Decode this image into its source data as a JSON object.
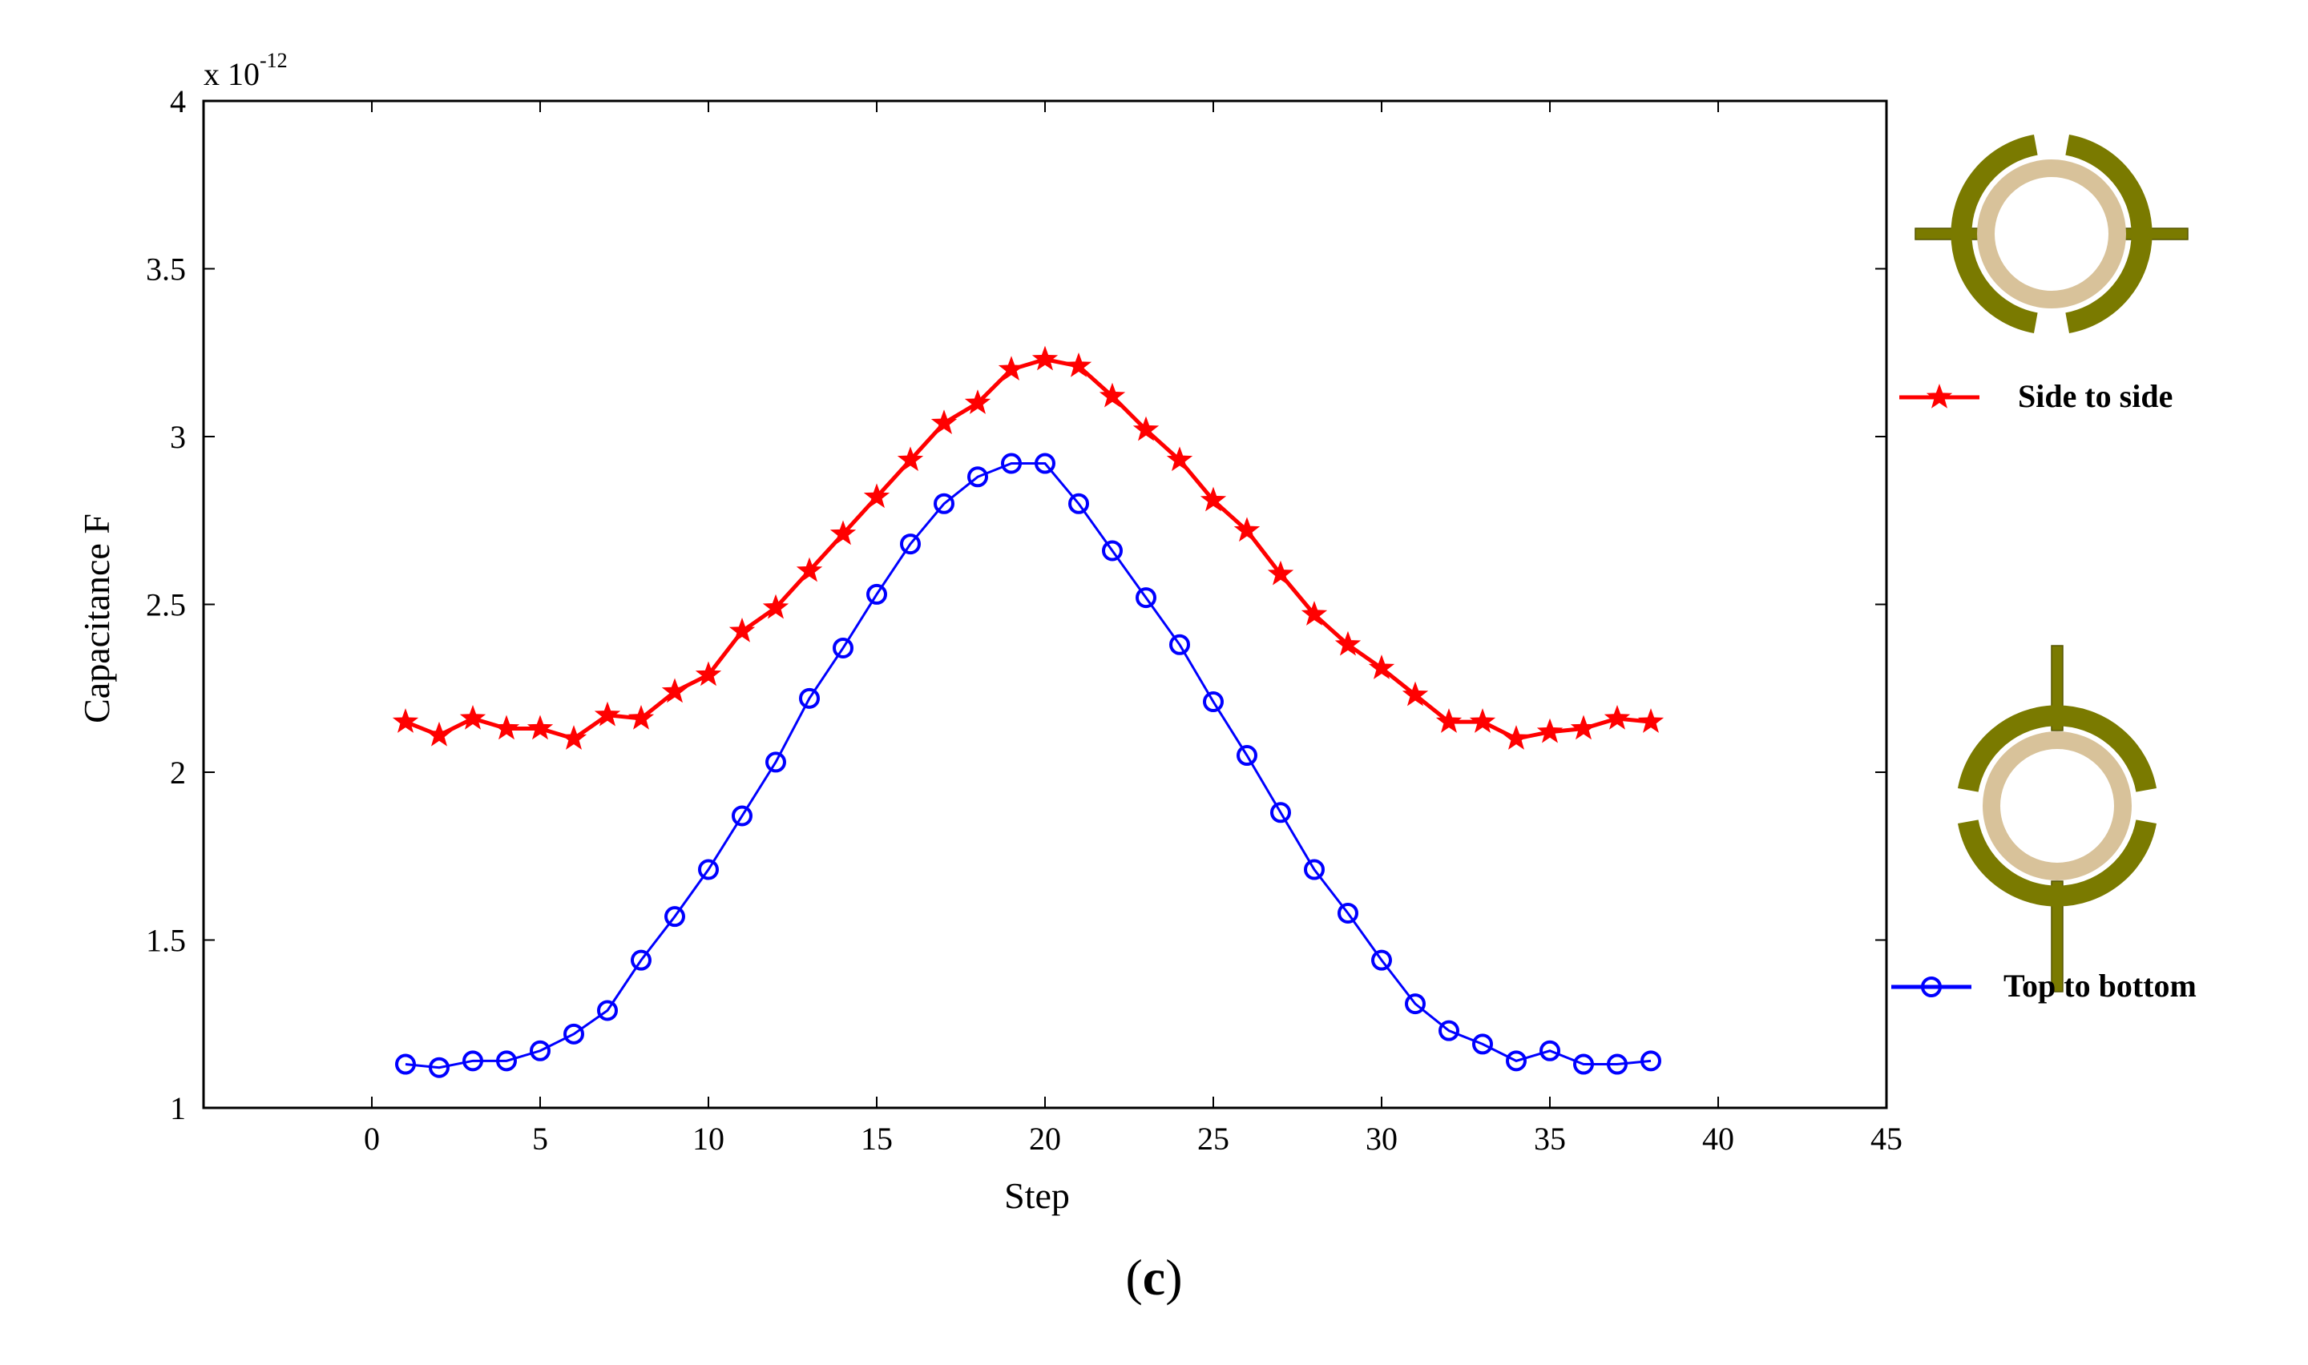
{
  "chart_data": {
    "type": "line",
    "title": "",
    "xlabel": "Step",
    "ylabel": "Capacitance F",
    "y_multiplier": "x 10",
    "y_exponent": "-12",
    "xlim": [
      -5,
      45
    ],
    "ylim": [
      1,
      4
    ],
    "x_ticks": [
      0,
      5,
      10,
      15,
      20,
      25,
      30,
      35,
      40,
      45
    ],
    "y_ticks": [
      1,
      1.5,
      2,
      2.5,
      3,
      3.5,
      4
    ],
    "x_tick_labels": [
      "0",
      "5",
      "10",
      "15",
      "20",
      "25",
      "30",
      "35",
      "40",
      "45"
    ],
    "y_tick_labels": [
      "1",
      "1.5",
      "2",
      "2.5",
      "3",
      "3.5",
      "4"
    ],
    "x": [
      1,
      2,
      3,
      4,
      5,
      6,
      7,
      8,
      9,
      10,
      11,
      12,
      13,
      14,
      15,
      16,
      17,
      18,
      19,
      20,
      21,
      22,
      23,
      24,
      25,
      26,
      27,
      28,
      29,
      30,
      31,
      32,
      33,
      34,
      35,
      36,
      37,
      38
    ],
    "series": [
      {
        "name": "Side to side",
        "color": "#ff0000",
        "marker": "star",
        "values": [
          2.15,
          2.11,
          2.16,
          2.13,
          2.13,
          2.1,
          2.17,
          2.16,
          2.24,
          2.29,
          2.42,
          2.49,
          2.6,
          2.71,
          2.82,
          2.93,
          3.04,
          3.1,
          3.2,
          3.23,
          3.21,
          3.12,
          3.02,
          2.93,
          2.81,
          2.72,
          2.59,
          2.47,
          2.38,
          2.31,
          2.23,
          2.15,
          2.15,
          2.1,
          2.12,
          2.13,
          2.16,
          2.15
        ]
      },
      {
        "name": "Top to bottom",
        "color": "#0000ff",
        "marker": "circle",
        "values": [
          1.13,
          1.12,
          1.14,
          1.14,
          1.17,
          1.22,
          1.29,
          1.44,
          1.57,
          1.71,
          1.87,
          2.03,
          2.22,
          2.37,
          2.53,
          2.68,
          2.8,
          2.88,
          2.92,
          2.92,
          2.8,
          2.66,
          2.52,
          2.38,
          2.21,
          2.05,
          1.88,
          1.71,
          1.58,
          1.44,
          1.31,
          1.23,
          1.19,
          1.14,
          1.17,
          1.13,
          1.13,
          1.14
        ]
      }
    ],
    "legend_position": "right",
    "annotation_colors": {
      "electrode": "#7a7a00",
      "electrode_dark": "#555500",
      "pipe": "#d8c29a"
    }
  },
  "caption": {
    "open": "(",
    "letter": "c",
    "close": ")"
  }
}
